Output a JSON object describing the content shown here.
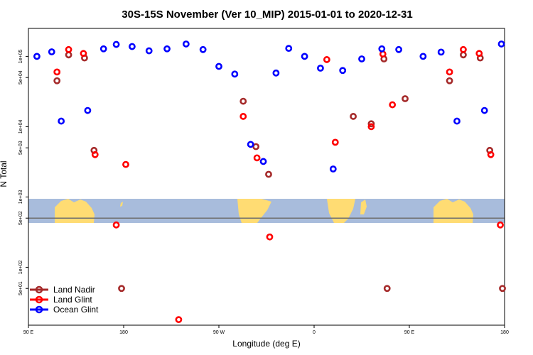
{
  "chart_data": {
    "type": "scatter",
    "title": "30S-15S November (Ver 10_MIP)   2015-01-01 to 2020-12-31",
    "xlabel": "Longitude (deg E)",
    "ylabel": "N Total",
    "x_ticks": [
      {
        "value": 90,
        "label": "90 E"
      },
      {
        "value": 180,
        "label": "180"
      },
      {
        "value": 270,
        "label": "90 W"
      },
      {
        "value": 360,
        "label": "0"
      },
      {
        "value": 450,
        "label": "90 E"
      },
      {
        "value": 540,
        "label": "180"
      }
    ],
    "xlim": [
      90,
      540
    ],
    "y_scale": "log",
    "ylim": [
      15,
      250000
    ],
    "y_ticks": [
      {
        "value": 50,
        "label": "5e+01"
      },
      {
        "value": 100,
        "label": "1e+02"
      },
      {
        "value": 500,
        "label": "5e+02"
      },
      {
        "value": 1000,
        "label": "1e+03"
      },
      {
        "value": 5000,
        "label": "5e+03"
      },
      {
        "value": 10000,
        "label": "1e+04"
      },
      {
        "value": 50000,
        "label": "5e+04"
      },
      {
        "value": 100000,
        "label": "1e+05"
      }
    ],
    "reference_line": 500,
    "map_strip_range": [
      400,
      900
    ],
    "series": [
      {
        "name": "Land Nadir",
        "color": "#a52a2a",
        "points": [
          [
            117,
            45000
          ],
          [
            128,
            105000
          ],
          [
            143,
            95000
          ],
          [
            152,
            4600
          ],
          [
            178,
            50
          ],
          [
            293,
            23000
          ],
          [
            305,
            5200
          ],
          [
            317,
            2100
          ],
          [
            414,
            11000
          ],
          [
            426,
            92000
          ],
          [
            446,
            25000
          ],
          [
            538,
            50
          ],
          [
            429,
            50
          ],
          [
            397,
            14000
          ],
          [
            488,
            45000
          ],
          [
            501,
            105000
          ],
          [
            517,
            95000
          ],
          [
            526,
            4600
          ]
        ]
      },
      {
        "name": "Land Glint",
        "color": "#ff0000",
        "points": [
          [
            117,
            60000
          ],
          [
            128,
            125000
          ],
          [
            142,
            110000
          ],
          [
            153,
            4000
          ],
          [
            173,
            400
          ],
          [
            182,
            2900
          ],
          [
            232,
            18
          ],
          [
            293,
            14000
          ],
          [
            306,
            3600
          ],
          [
            318,
            270
          ],
          [
            372,
            90000
          ],
          [
            380,
            6000
          ],
          [
            414,
            10000
          ],
          [
            425,
            108000
          ],
          [
            434,
            20500
          ],
          [
            488,
            60000
          ],
          [
            501,
            125000
          ],
          [
            516,
            110000
          ],
          [
            527,
            4000
          ],
          [
            536,
            400
          ]
        ]
      },
      {
        "name": "Ocean Glint",
        "color": "#0000ff",
        "points": [
          [
            98,
            100000
          ],
          [
            112,
            116000
          ],
          [
            121,
            12000
          ],
          [
            146,
            17000
          ],
          [
            161,
            128000
          ],
          [
            173,
            148000
          ],
          [
            188,
            138000
          ],
          [
            204,
            120000
          ],
          [
            221,
            128000
          ],
          [
            239,
            150000
          ],
          [
            255,
            125000
          ],
          [
            270,
            72000
          ],
          [
            285,
            56000
          ],
          [
            300,
            5600
          ],
          [
            312,
            3200
          ],
          [
            324,
            58000
          ],
          [
            336,
            130000
          ],
          [
            351,
            100000
          ],
          [
            366,
            68000
          ],
          [
            378,
            2500
          ],
          [
            387,
            63000
          ],
          [
            405,
            92000
          ],
          [
            424,
            128000
          ],
          [
            440,
            125000
          ],
          [
            463,
            100000
          ],
          [
            480,
            115000
          ],
          [
            495,
            12000
          ],
          [
            521,
            17000
          ],
          [
            537,
            150000
          ]
        ]
      }
    ],
    "legend_position": "bottom-left"
  }
}
